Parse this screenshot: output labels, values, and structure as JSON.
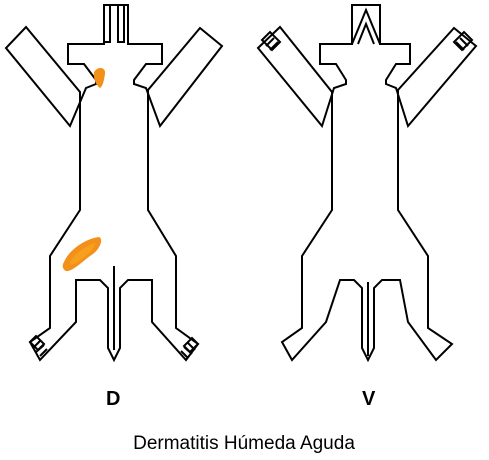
{
  "figure": {
    "dorsal_label": "D",
    "ventral_label": "V",
    "caption": "Dermatitis Húmeda Aguda"
  },
  "colors": {
    "lesion_outer": "#f39019",
    "lesion_core": "#f7a21f",
    "outline": "#000000"
  },
  "lesions": [
    {
      "view": "dorsal",
      "site": "neck"
    },
    {
      "view": "dorsal",
      "site": "hip-left"
    }
  ]
}
